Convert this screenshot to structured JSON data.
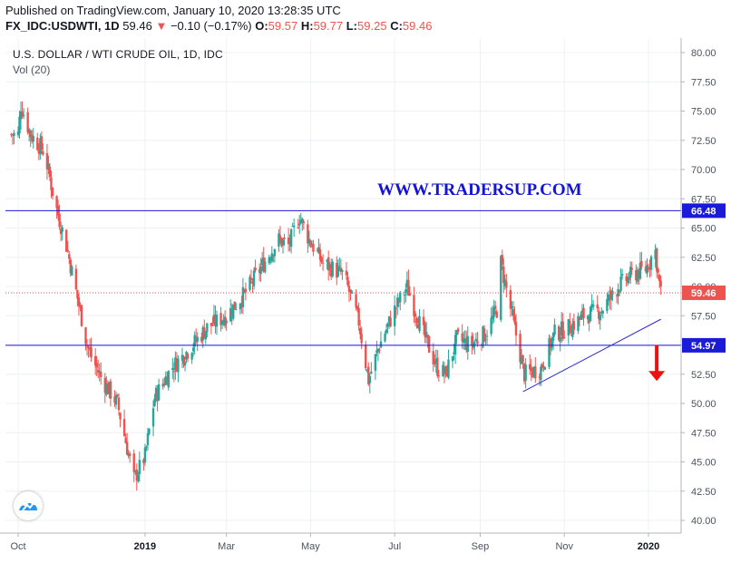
{
  "header": {
    "published": "Published on TradingView.com, January 10, 2020 13:28:35 UTC",
    "symbol": "FX_IDC:USDWTI, 1D",
    "last": "59.46",
    "change_arrow": "▼",
    "change": "−0.10 (−0.17%)",
    "o_label": "O:",
    "o_value": "59.57",
    "h_label": "H:",
    "h_value": "59.77",
    "l_label": "L:",
    "l_value": "59.25",
    "c_label": "C:",
    "c_value": "59.46"
  },
  "overlay": {
    "title": "U.S. DOLLAR / WTI CRUDE OIL, 1D, IDC",
    "volume": "Vol (20)",
    "watermark": "WWW.TRADERSUP.COM"
  },
  "logo": {
    "icon": "tradingview-logo-icon"
  },
  "colors": {
    "up": "#26a69a",
    "down": "#ef5350",
    "level_line": "#1a1adb",
    "trendline": "#2a2ad8",
    "arrow": "#ee1111",
    "grid": "#eef0f3",
    "axis_text": "#4c525e"
  },
  "chart_data": {
    "type": "candlestick",
    "title": "U.S. DOLLAR / WTI CRUDE OIL, 1D, IDC",
    "ylim": [
      40,
      80
    ],
    "y_ticks": [
      "40.00",
      "42.50",
      "45.00",
      "47.50",
      "50.00",
      "52.50",
      "55.00",
      "57.50",
      "60.00",
      "62.50",
      "65.00",
      "67.50",
      "70.00",
      "72.50",
      "75.00",
      "77.50",
      "80.00"
    ],
    "x_ticks": [
      "Oct",
      "2019",
      "Mar",
      "May",
      "Jul",
      "Sep",
      "Nov",
      "2020"
    ],
    "grid": true,
    "price_path_dates": [
      "2018-10-01",
      "2018-10-03",
      "2018-10-10",
      "2018-10-20",
      "2018-10-28",
      "2018-11-05",
      "2018-11-13",
      "2018-11-20",
      "2018-11-23",
      "2018-12-01",
      "2018-12-12",
      "2018-12-24",
      "2019-01-01",
      "2019-01-08",
      "2019-01-20",
      "2019-02-01",
      "2019-02-15",
      "2019-03-01",
      "2019-03-15",
      "2019-03-28",
      "2019-04-08",
      "2019-04-15",
      "2019-04-23",
      "2019-04-30",
      "2019-05-10",
      "2019-05-25",
      "2019-06-05",
      "2019-06-12",
      "2019-06-20",
      "2019-07-01",
      "2019-07-10",
      "2019-07-20",
      "2019-08-01",
      "2019-08-07",
      "2019-08-15",
      "2019-08-25",
      "2019-09-05",
      "2019-09-13",
      "2019-09-16",
      "2019-09-25",
      "2019-10-03",
      "2019-10-15",
      "2019-10-25",
      "2019-11-05",
      "2019-11-15",
      "2019-11-28",
      "2019-12-10",
      "2019-12-20",
      "2019-12-30",
      "2020-01-03",
      "2020-01-06",
      "2020-01-08",
      "2020-01-10"
    ],
    "price_path_values": [
      73.0,
      75.5,
      73.0,
      71.5,
      67.0,
      63.5,
      59.0,
      55.0,
      54.0,
      52.0,
      50.0,
      43.5,
      45.5,
      50.5,
      53.0,
      54.5,
      56.5,
      57.5,
      59.5,
      62.0,
      64.0,
      63.5,
      66.0,
      64.0,
      62.0,
      61.0,
      57.0,
      52.0,
      55.0,
      58.0,
      60.0,
      56.5,
      53.0,
      52.5,
      55.5,
      55.0,
      56.0,
      58.0,
      62.0,
      57.0,
      52.5,
      53.0,
      56.0,
      56.5,
      57.5,
      58.0,
      60.0,
      61.0,
      61.5,
      62.5,
      63.0,
      61.0,
      59.46
    ],
    "horizontal_lines": [
      {
        "value": 66.48,
        "label": "66.48"
      },
      {
        "value": 54.97,
        "label": "54.97"
      }
    ],
    "current_price": {
      "value": 59.46,
      "label": "59.46"
    },
    "trendline": {
      "from_date": "2019-10-02",
      "from_value": 51.0,
      "to_date": "2020-01-10",
      "to_value": 57.2
    },
    "annotation_arrow": {
      "date": "2020-01-07",
      "from_value": 55.0,
      "to_value": 52.0
    }
  }
}
